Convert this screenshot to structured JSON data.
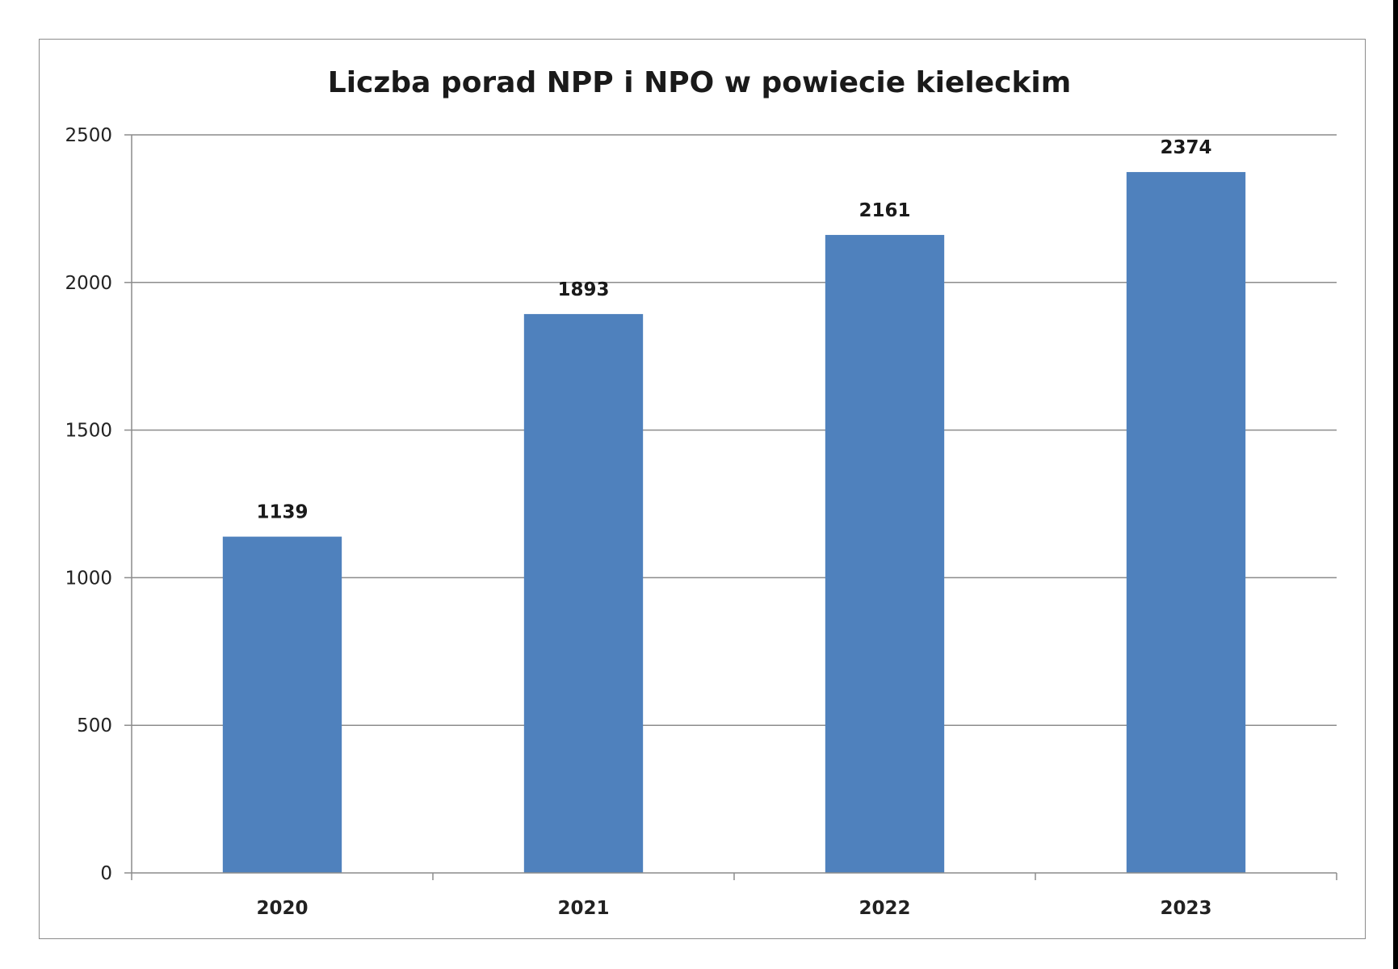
{
  "chart_data": {
    "type": "bar",
    "title": "Liczba porad NPP i NPO w powiecie kieleckim",
    "categories": [
      "2020",
      "2021",
      "2022",
      "2023"
    ],
    "values": [
      1139,
      1893,
      2161,
      2374
    ],
    "data_labels": [
      "1139",
      "1893",
      "2161",
      "2374"
    ],
    "ylim": [
      0,
      2500
    ],
    "yticks": [
      0,
      500,
      1000,
      1500,
      2000,
      2500
    ],
    "ytick_labels": [
      "0",
      "500",
      "1000",
      "1500",
      "2000",
      "2500"
    ],
    "xlabel": "",
    "ylabel": "",
    "grid": true,
    "legend": "none",
    "bar_color": "#4f81bd",
    "grid_color": "#8c8c8c"
  }
}
